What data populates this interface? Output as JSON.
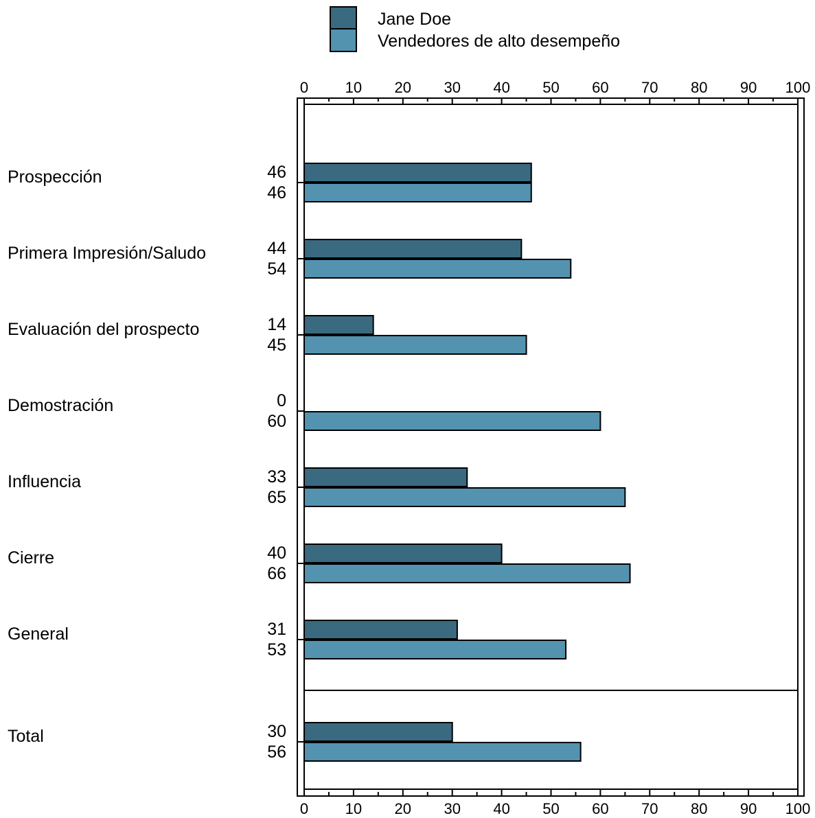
{
  "chart_data": {
    "type": "bar",
    "orientation": "horizontal",
    "categories": [
      "Prospección",
      "Primera Impresión/Saludo",
      "Evaluación del prospecto",
      "Demostración",
      "Influencia",
      "Cierre",
      "General",
      "Total"
    ],
    "series": [
      {
        "name": "Jane Doe",
        "color": "#3a6a80",
        "values": [
          46,
          44,
          14,
          0,
          33,
          40,
          31,
          30
        ]
      },
      {
        "name": "Vendedores de alto desempeño",
        "color": "#5393b0",
        "values": [
          46,
          54,
          45,
          60,
          65,
          66,
          53,
          56
        ]
      }
    ],
    "xlim": [
      0,
      100
    ],
    "xticks": [
      0,
      10,
      20,
      30,
      40,
      50,
      60,
      70,
      80,
      90,
      100
    ],
    "title": "",
    "xlabel": "",
    "ylabel": "",
    "legend_position": "top",
    "separator_before_last": true
  }
}
